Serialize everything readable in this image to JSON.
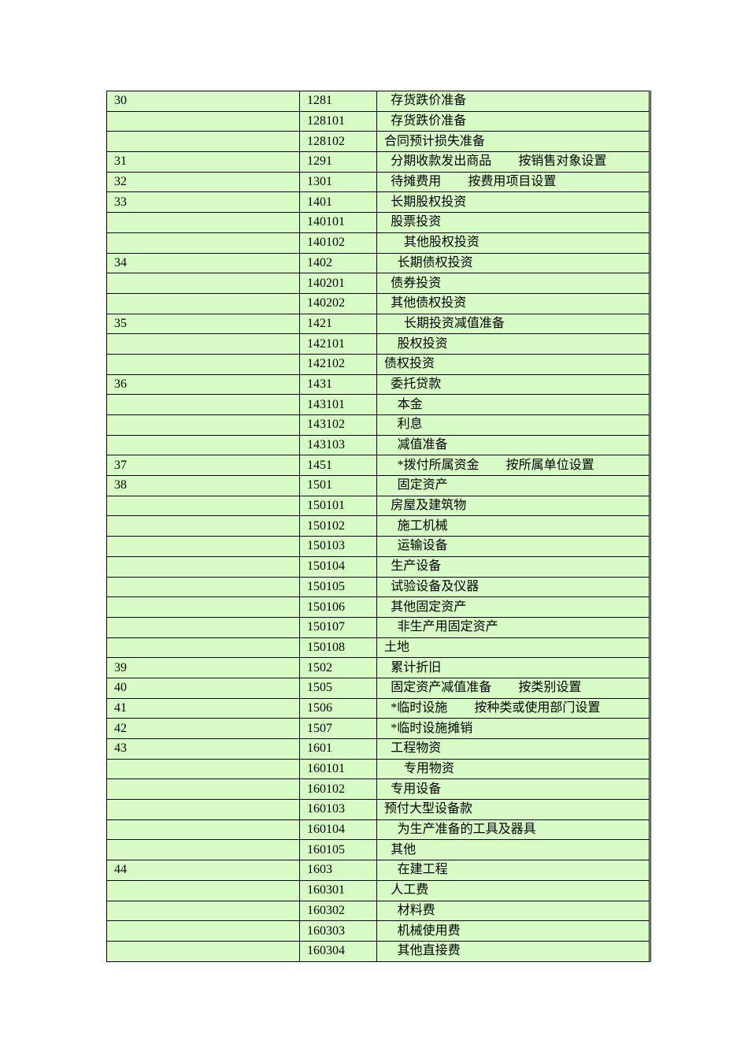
{
  "table": {
    "rows": [
      {
        "no": "30",
        "code": "1281",
        "name": "存货跌价准备",
        "note": ""
      },
      {
        "no": "",
        "code": "128101",
        "name": "存货跌价准备",
        "note": ""
      },
      {
        "no": "",
        "code": "128102",
        "name": "合同预计损失准备",
        "note": ""
      },
      {
        "no": "31",
        "code": "1291",
        "name": "分期收款发出商品",
        "note": "按销售对象设置"
      },
      {
        "no": "32",
        "code": "1301",
        "name": "待摊费用",
        "note": "按费用项目设置"
      },
      {
        "no": "33",
        "code": "1401",
        "name": "长期股权投资",
        "note": ""
      },
      {
        "no": "",
        "code": "140101",
        "name": "股票投资",
        "note": ""
      },
      {
        "no": "",
        "code": "140102",
        "name": "其他股权投资",
        "note": ""
      },
      {
        "no": "34",
        "code": "1402",
        "name": "长期债权投资",
        "note": ""
      },
      {
        "no": "",
        "code": "140201",
        "name": "债券投资",
        "note": ""
      },
      {
        "no": "",
        "code": "140202",
        "name": "其他债权投资",
        "note": ""
      },
      {
        "no": "35",
        "code": "1421",
        "name": "长期投资减值准备",
        "note": ""
      },
      {
        "no": "",
        "code": "142101",
        "name": "股权投资",
        "note": ""
      },
      {
        "no": "",
        "code": "142102",
        "name": "债权投资",
        "note": ""
      },
      {
        "no": "36",
        "code": "1431",
        "name": "委托贷款",
        "note": ""
      },
      {
        "no": "",
        "code": "143101",
        "name": "本金",
        "note": ""
      },
      {
        "no": "",
        "code": "143102",
        "name": "利息",
        "note": ""
      },
      {
        "no": "",
        "code": "143103",
        "name": "减值准备",
        "note": ""
      },
      {
        "no": "37",
        "code": "1451",
        "name": "*拨付所属资金",
        "note": "按所属单位设置"
      },
      {
        "no": "38",
        "code": "1501",
        "name": "固定资产",
        "note": ""
      },
      {
        "no": "",
        "code": "150101",
        "name": "房屋及建筑物",
        "note": ""
      },
      {
        "no": "",
        "code": "150102",
        "name": "施工机械",
        "note": ""
      },
      {
        "no": "",
        "code": "150103",
        "name": "运输设备",
        "note": ""
      },
      {
        "no": "",
        "code": "150104",
        "name": "生产设备",
        "note": ""
      },
      {
        "no": "",
        "code": "150105",
        "name": "试验设备及仪器",
        "note": ""
      },
      {
        "no": "",
        "code": "150106",
        "name": "其他固定资产",
        "note": ""
      },
      {
        "no": "",
        "code": "150107",
        "name": "非生产用固定资产",
        "note": ""
      },
      {
        "no": "",
        "code": "150108",
        "name": "土地",
        "note": ""
      },
      {
        "no": "39",
        "code": "1502",
        "name": "累计折旧",
        "note": ""
      },
      {
        "no": "40",
        "code": "1505",
        "name": "固定资产减值准备",
        "note": "按类别设置"
      },
      {
        "no": "41",
        "code": "1506",
        "name": "*临时设施",
        "note": "按种类或使用部门设置"
      },
      {
        "no": "42",
        "code": "1507",
        "name": "*临时设施摊销",
        "note": ""
      },
      {
        "no": "43",
        "code": "1601",
        "name": "工程物资",
        "note": ""
      },
      {
        "no": "",
        "code": "160101",
        "name": "专用物资",
        "note": ""
      },
      {
        "no": "",
        "code": "160102",
        "name": "专用设备",
        "note": ""
      },
      {
        "no": "",
        "code": "160103",
        "name": "预付大型设备款",
        "note": ""
      },
      {
        "no": "",
        "code": "160104",
        "name": "为生产准备的工具及器具",
        "note": ""
      },
      {
        "no": "",
        "code": "160105",
        "name": "其他",
        "note": ""
      },
      {
        "no": "44",
        "code": "1603",
        "name": "在建工程",
        "note": ""
      },
      {
        "no": "",
        "code": "160301",
        "name": "人工费",
        "note": ""
      },
      {
        "no": "",
        "code": "160302",
        "name": "材料费",
        "note": ""
      },
      {
        "no": "",
        "code": "160303",
        "name": "机械使用费",
        "note": ""
      },
      {
        "no": "",
        "code": "160304",
        "name": "其他直接费",
        "note": ""
      }
    ]
  },
  "colors": {
    "cell_background": "#d6fbc4",
    "border": "#000000"
  }
}
